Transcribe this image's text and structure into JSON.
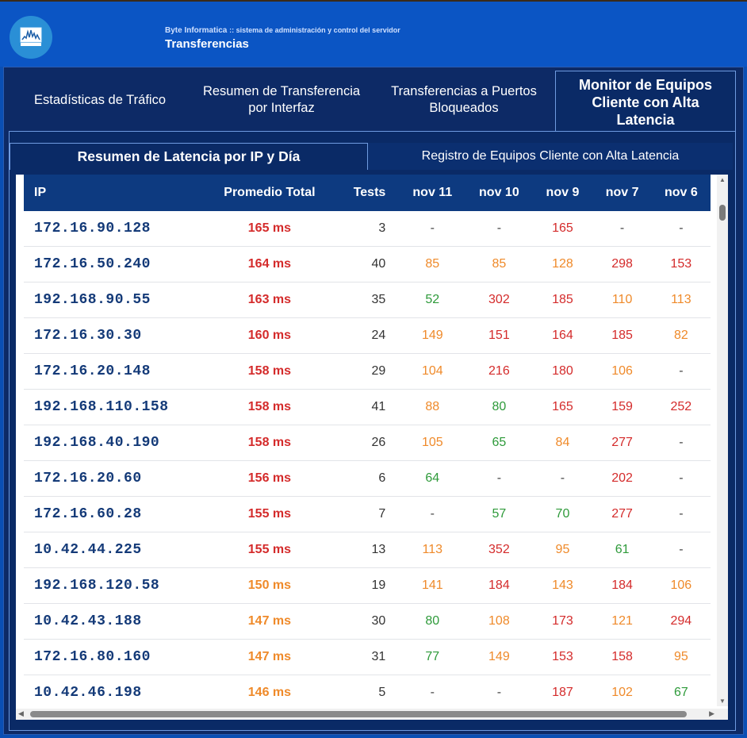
{
  "header": {
    "app_name": "Byte Informatica",
    "app_tagline": ":: sistema de administración y control del servidor",
    "title": "Transferencias",
    "logo_icon": "server-monitor-icon"
  },
  "tabs": [
    {
      "label": "Estadísticas de Tráfico"
    },
    {
      "label": "Resumen de Transferencia por Interfaz"
    },
    {
      "label": "Transferencias a Puertos Bloqueados"
    },
    {
      "label": "Monitor de Equipos Cliente con Alta Latencia"
    }
  ],
  "subtabs": [
    {
      "label": "Resumen de Latencia por IP y Día"
    },
    {
      "label": "Registro de Equipos Cliente con Alta Latencia"
    }
  ],
  "colors": {
    "red": "#d42b2b",
    "orange": "#ef8a2a",
    "green": "#2e9a3a"
  },
  "table": {
    "headers": [
      "IP",
      "Promedio Total",
      "Tests",
      "nov 11",
      "nov 10",
      "nov 9",
      "nov 7",
      "nov 6"
    ],
    "rows": [
      {
        "ip": "172.16.90.128",
        "avg": "165 ms",
        "avg_level": "red",
        "tests": "3",
        "days": [
          [
            "-",
            "dash"
          ],
          [
            "-",
            "dash"
          ],
          [
            "165",
            "red"
          ],
          [
            "-",
            "dash"
          ],
          [
            "-",
            "dash"
          ]
        ]
      },
      {
        "ip": "172.16.50.240",
        "avg": "164 ms",
        "avg_level": "red",
        "tests": "40",
        "days": [
          [
            "85",
            "orange"
          ],
          [
            "85",
            "orange"
          ],
          [
            "128",
            "orange"
          ],
          [
            "298",
            "red"
          ],
          [
            "153",
            "red"
          ]
        ]
      },
      {
        "ip": "192.168.90.55",
        "avg": "163 ms",
        "avg_level": "red",
        "tests": "35",
        "days": [
          [
            "52",
            "green"
          ],
          [
            "302",
            "red"
          ],
          [
            "185",
            "red"
          ],
          [
            "110",
            "orange"
          ],
          [
            "113",
            "orange"
          ]
        ]
      },
      {
        "ip": "172.16.30.30",
        "avg": "160 ms",
        "avg_level": "red",
        "tests": "24",
        "days": [
          [
            "149",
            "orange"
          ],
          [
            "151",
            "red"
          ],
          [
            "164",
            "red"
          ],
          [
            "185",
            "red"
          ],
          [
            "82",
            "orange"
          ]
        ]
      },
      {
        "ip": "172.16.20.148",
        "avg": "158 ms",
        "avg_level": "red",
        "tests": "29",
        "days": [
          [
            "104",
            "orange"
          ],
          [
            "216",
            "red"
          ],
          [
            "180",
            "red"
          ],
          [
            "106",
            "orange"
          ],
          [
            "-",
            "dash"
          ]
        ]
      },
      {
        "ip": "192.168.110.158",
        "avg": "158 ms",
        "avg_level": "red",
        "tests": "41",
        "days": [
          [
            "88",
            "orange"
          ],
          [
            "80",
            "green"
          ],
          [
            "165",
            "red"
          ],
          [
            "159",
            "red"
          ],
          [
            "252",
            "red"
          ]
        ]
      },
      {
        "ip": "192.168.40.190",
        "avg": "158 ms",
        "avg_level": "red",
        "tests": "26",
        "days": [
          [
            "105",
            "orange"
          ],
          [
            "65",
            "green"
          ],
          [
            "84",
            "orange"
          ],
          [
            "277",
            "red"
          ],
          [
            "-",
            "dash"
          ]
        ]
      },
      {
        "ip": "172.16.20.60",
        "avg": "156 ms",
        "avg_level": "red",
        "tests": "6",
        "days": [
          [
            "64",
            "green"
          ],
          [
            "-",
            "dash"
          ],
          [
            "-",
            "dash"
          ],
          [
            "202",
            "red"
          ],
          [
            "-",
            "dash"
          ]
        ]
      },
      {
        "ip": "172.16.60.28",
        "avg": "155 ms",
        "avg_level": "red",
        "tests": "7",
        "days": [
          [
            "-",
            "dash"
          ],
          [
            "57",
            "green"
          ],
          [
            "70",
            "green"
          ],
          [
            "277",
            "red"
          ],
          [
            "-",
            "dash"
          ]
        ]
      },
      {
        "ip": "10.42.44.225",
        "avg": "155 ms",
        "avg_level": "red",
        "tests": "13",
        "days": [
          [
            "113",
            "orange"
          ],
          [
            "352",
            "red"
          ],
          [
            "95",
            "orange"
          ],
          [
            "61",
            "green"
          ],
          [
            "-",
            "dash"
          ]
        ]
      },
      {
        "ip": "192.168.120.58",
        "avg": "150 ms",
        "avg_level": "orange",
        "tests": "19",
        "days": [
          [
            "141",
            "orange"
          ],
          [
            "184",
            "red"
          ],
          [
            "143",
            "orange"
          ],
          [
            "184",
            "red"
          ],
          [
            "106",
            "orange"
          ]
        ]
      },
      {
        "ip": "10.42.43.188",
        "avg": "147 ms",
        "avg_level": "orange",
        "tests": "30",
        "days": [
          [
            "80",
            "green"
          ],
          [
            "108",
            "orange"
          ],
          [
            "173",
            "red"
          ],
          [
            "121",
            "orange"
          ],
          [
            "294",
            "red"
          ]
        ]
      },
      {
        "ip": "172.16.80.160",
        "avg": "147 ms",
        "avg_level": "orange",
        "tests": "31",
        "days": [
          [
            "77",
            "green"
          ],
          [
            "149",
            "orange"
          ],
          [
            "153",
            "red"
          ],
          [
            "158",
            "red"
          ],
          [
            "95",
            "orange"
          ]
        ]
      },
      {
        "ip": "10.42.46.198",
        "avg": "146 ms",
        "avg_level": "orange",
        "tests": "5",
        "days": [
          [
            "-",
            "dash"
          ],
          [
            "-",
            "dash"
          ],
          [
            "187",
            "red"
          ],
          [
            "102",
            "orange"
          ],
          [
            "67",
            "green"
          ]
        ]
      }
    ]
  }
}
